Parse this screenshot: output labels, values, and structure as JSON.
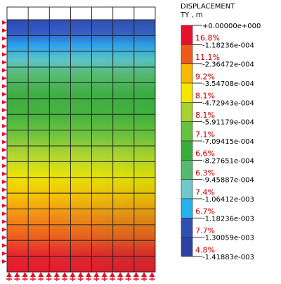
{
  "legend": {
    "title_line1": "DISPLACEMENT",
    "title_line2": "TY , m",
    "boundary_values": [
      "+0.00000e+000",
      "-1.18236e-004",
      "-2.36472e-004",
      "-3.54708e-004",
      "-4.72943e-004",
      "-5.91179e-004",
      "-7.09415e-004",
      "-8.27651e-004",
      "-9.45887e-004",
      "-1.06412e-003",
      "-1.18236e-003",
      "-1.30059e-003",
      "-1.41883e-003"
    ],
    "bands": [
      {
        "percent": "16.8%",
        "color": "#e8102a"
      },
      {
        "percent": "11.1%",
        "color": "#f05a18"
      },
      {
        "percent": "9.2%",
        "color": "#f8b800"
      },
      {
        "percent": "8.1%",
        "color": "#f4e600"
      },
      {
        "percent": "8.1%",
        "color": "#a8d030"
      },
      {
        "percent": "7.1%",
        "color": "#66c23c"
      },
      {
        "percent": "6.6%",
        "color": "#3aac3e"
      },
      {
        "percent": "6.3%",
        "color": "#56b96e"
      },
      {
        "percent": "7.4%",
        "color": "#70c8c8"
      },
      {
        "percent": "6.7%",
        "color": "#28b0ee"
      },
      {
        "percent": "7.7%",
        "color": "#3050b0"
      },
      {
        "percent": "4.8%",
        "color": "#2e40a0"
      }
    ],
    "percent_color": "#cc0000"
  },
  "mesh": {
    "columns": 7,
    "rows": 16,
    "support_icon": "pin-support-icon",
    "support_color": "#e8102a"
  }
}
